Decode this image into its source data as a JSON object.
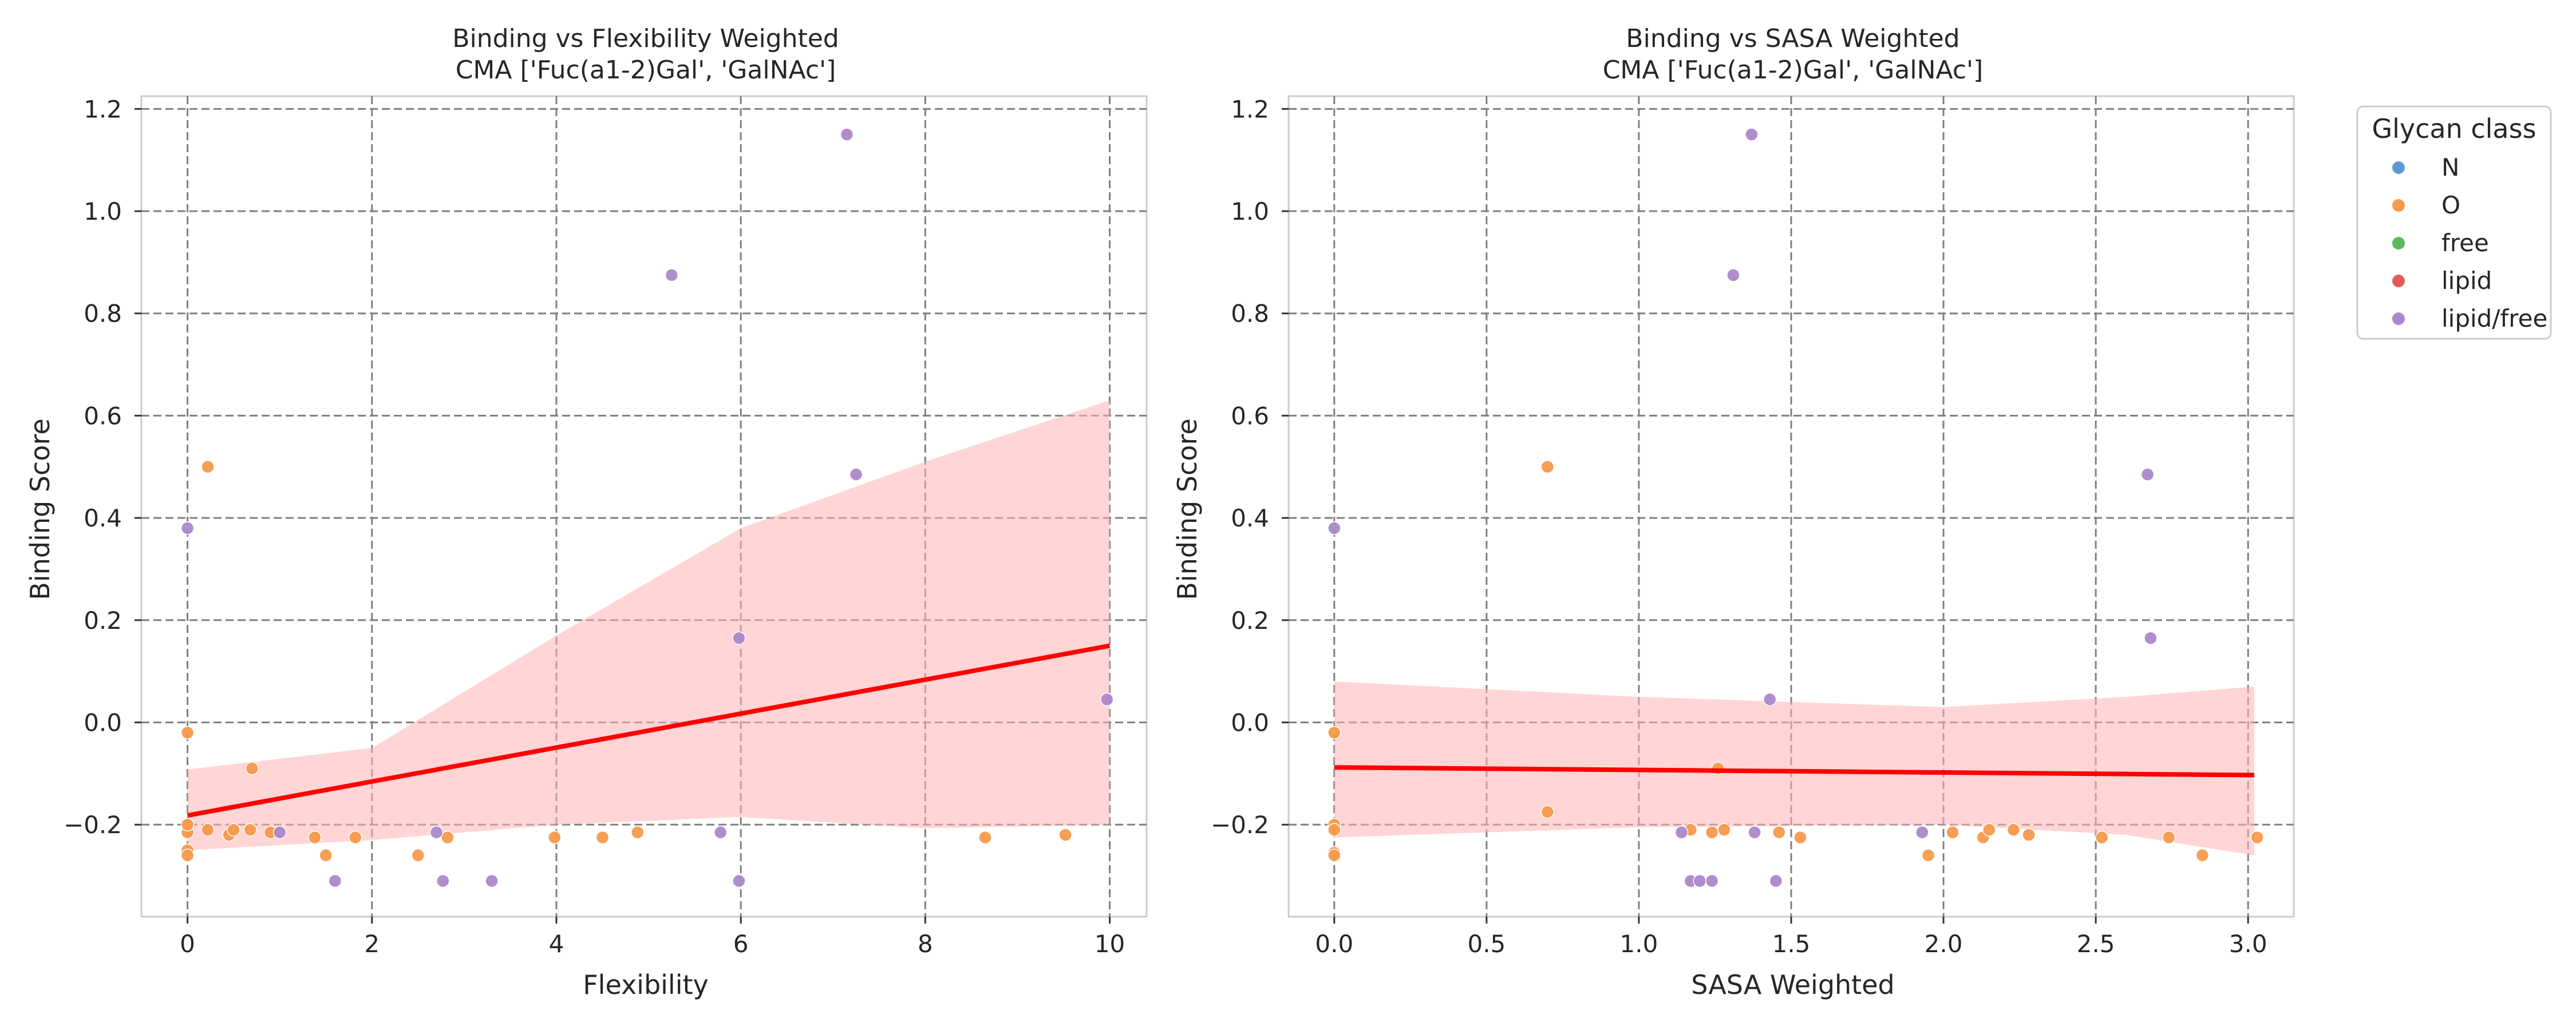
{
  "chart_data": [
    {
      "type": "scatter",
      "title_line1": "Binding vs Flexibility Weighted",
      "title_line2": "CMA ['Fuc(a1-2)Gal', 'GalNAc']",
      "xlabel": "Flexibility",
      "ylabel": "Binding Score",
      "xlim": [
        -0.5,
        10.4
      ],
      "ylim": [
        -0.38,
        1.225
      ],
      "xticks": [
        0,
        2,
        4,
        6,
        8,
        10
      ],
      "xtick_labels": [
        "0",
        "2",
        "4",
        "6",
        "8",
        "10"
      ],
      "yticks": [
        -0.2,
        0.0,
        0.2,
        0.4,
        0.6,
        0.8,
        1.0,
        1.2
      ],
      "ytick_labels": [
        "−0.2",
        "0.0",
        "0.2",
        "0.4",
        "0.6",
        "0.8",
        "1.0",
        "1.2"
      ],
      "grid": true,
      "points": [
        {
          "x": 0.0,
          "y": -0.215,
          "class": "O"
        },
        {
          "x": 0.0,
          "y": -0.2,
          "class": "O"
        },
        {
          "x": 0.0,
          "y": -0.25,
          "class": "O"
        },
        {
          "x": 0.0,
          "y": -0.26,
          "class": "O"
        },
        {
          "x": 0.0,
          "y": -0.02,
          "class": "O"
        },
        {
          "x": 0.22,
          "y": 0.5,
          "class": "O"
        },
        {
          "x": 0.22,
          "y": -0.21,
          "class": "O"
        },
        {
          "x": 0.45,
          "y": -0.22,
          "class": "O"
        },
        {
          "x": 0.5,
          "y": -0.21,
          "class": "O"
        },
        {
          "x": 0.68,
          "y": -0.21,
          "class": "O"
        },
        {
          "x": 0.7,
          "y": -0.09,
          "class": "O"
        },
        {
          "x": 0.9,
          "y": -0.215,
          "class": "O"
        },
        {
          "x": 1.38,
          "y": -0.225,
          "class": "O"
        },
        {
          "x": 1.5,
          "y": -0.26,
          "class": "O"
        },
        {
          "x": 1.82,
          "y": -0.225,
          "class": "O"
        },
        {
          "x": 2.5,
          "y": -0.26,
          "class": "O"
        },
        {
          "x": 2.82,
          "y": -0.225,
          "class": "O"
        },
        {
          "x": 3.98,
          "y": -0.225,
          "class": "O"
        },
        {
          "x": 4.5,
          "y": -0.225,
          "class": "O"
        },
        {
          "x": 4.88,
          "y": -0.215,
          "class": "O"
        },
        {
          "x": 8.65,
          "y": -0.225,
          "class": "O"
        },
        {
          "x": 9.52,
          "y": -0.22,
          "class": "O"
        },
        {
          "x": 0.0,
          "y": 0.38,
          "class": "lipid/free"
        },
        {
          "x": 1.0,
          "y": -0.215,
          "class": "lipid/free"
        },
        {
          "x": 1.6,
          "y": -0.31,
          "class": "lipid/free"
        },
        {
          "x": 2.7,
          "y": -0.215,
          "class": "lipid/free"
        },
        {
          "x": 2.77,
          "y": -0.31,
          "class": "lipid/free"
        },
        {
          "x": 3.3,
          "y": -0.31,
          "class": "lipid/free"
        },
        {
          "x": 5.25,
          "y": 0.875,
          "class": "lipid/free"
        },
        {
          "x": 5.78,
          "y": -0.215,
          "class": "lipid/free"
        },
        {
          "x": 5.98,
          "y": 0.165,
          "class": "lipid/free"
        },
        {
          "x": 5.98,
          "y": -0.31,
          "class": "lipid/free"
        },
        {
          "x": 7.15,
          "y": 1.15,
          "class": "lipid/free"
        },
        {
          "x": 7.25,
          "y": 0.485,
          "class": "lipid/free"
        },
        {
          "x": 9.97,
          "y": 0.045,
          "class": "lipid/free"
        }
      ],
      "regression": {
        "x": [
          0,
          10
        ],
        "y": [
          -0.182,
          0.15
        ],
        "ci_upper": [
          [
            0,
            -0.092
          ],
          [
            2,
            -0.05
          ],
          [
            4,
            0.17
          ],
          [
            6,
            0.38
          ],
          [
            8,
            0.51
          ],
          [
            10,
            0.63
          ]
        ],
        "ci_lower": [
          [
            10,
            -0.2
          ],
          [
            8,
            -0.207
          ],
          [
            6,
            -0.185
          ],
          [
            4,
            -0.2
          ],
          [
            2,
            -0.23
          ],
          [
            0,
            -0.25
          ]
        ]
      }
    },
    {
      "type": "scatter",
      "title_line1": "Binding vs SASA Weighted",
      "title_line2": "CMA ['Fuc(a1-2)Gal', 'GalNAc']",
      "xlabel": "SASA Weighted",
      "ylabel": "Binding Score",
      "xlim": [
        -0.15,
        3.15
      ],
      "ylim": [
        -0.38,
        1.225
      ],
      "xticks": [
        0.0,
        0.5,
        1.0,
        1.5,
        2.0,
        2.5,
        3.0
      ],
      "xtick_labels": [
        "0.0",
        "0.5",
        "1.0",
        "1.5",
        "2.0",
        "2.5",
        "3.0"
      ],
      "yticks": [
        -0.2,
        0.0,
        0.2,
        0.4,
        0.6,
        0.8,
        1.0,
        1.2
      ],
      "ytick_labels": [
        "−0.2",
        "0.0",
        "0.2",
        "0.4",
        "0.6",
        "0.8",
        "1.0",
        "1.2"
      ],
      "grid": true,
      "points": [
        {
          "x": 0.0,
          "y": -0.2,
          "class": "O"
        },
        {
          "x": 0.0,
          "y": -0.21,
          "class": "O"
        },
        {
          "x": 0.0,
          "y": -0.255,
          "class": "O"
        },
        {
          "x": 0.0,
          "y": -0.26,
          "class": "O"
        },
        {
          "x": 0.0,
          "y": -0.02,
          "class": "O"
        },
        {
          "x": 0.7,
          "y": 0.5,
          "class": "O"
        },
        {
          "x": 0.7,
          "y": -0.175,
          "class": "O"
        },
        {
          "x": 1.17,
          "y": -0.21,
          "class": "O"
        },
        {
          "x": 1.24,
          "y": -0.215,
          "class": "O"
        },
        {
          "x": 1.26,
          "y": -0.09,
          "class": "O"
        },
        {
          "x": 1.28,
          "y": -0.21,
          "class": "O"
        },
        {
          "x": 1.46,
          "y": -0.215,
          "class": "O"
        },
        {
          "x": 1.53,
          "y": -0.225,
          "class": "O"
        },
        {
          "x": 1.95,
          "y": -0.26,
          "class": "O"
        },
        {
          "x": 2.03,
          "y": -0.215,
          "class": "O"
        },
        {
          "x": 2.13,
          "y": -0.225,
          "class": "O"
        },
        {
          "x": 2.15,
          "y": -0.21,
          "class": "O"
        },
        {
          "x": 2.23,
          "y": -0.21,
          "class": "O"
        },
        {
          "x": 2.28,
          "y": -0.22,
          "class": "O"
        },
        {
          "x": 2.52,
          "y": -0.225,
          "class": "O"
        },
        {
          "x": 2.74,
          "y": -0.225,
          "class": "O"
        },
        {
          "x": 2.85,
          "y": -0.26,
          "class": "O"
        },
        {
          "x": 3.03,
          "y": -0.225,
          "class": "O"
        },
        {
          "x": 0.0,
          "y": 0.38,
          "class": "lipid/free"
        },
        {
          "x": 1.14,
          "y": -0.215,
          "class": "lipid/free"
        },
        {
          "x": 1.17,
          "y": -0.31,
          "class": "lipid/free"
        },
        {
          "x": 1.2,
          "y": -0.31,
          "class": "lipid/free"
        },
        {
          "x": 1.24,
          "y": -0.31,
          "class": "lipid/free"
        },
        {
          "x": 1.31,
          "y": 0.875,
          "class": "lipid/free"
        },
        {
          "x": 1.37,
          "y": 1.15,
          "class": "lipid/free"
        },
        {
          "x": 1.38,
          "y": -0.215,
          "class": "lipid/free"
        },
        {
          "x": 1.43,
          "y": 0.045,
          "class": "lipid/free"
        },
        {
          "x": 1.45,
          "y": -0.31,
          "class": "lipid/free"
        },
        {
          "x": 1.93,
          "y": -0.215,
          "class": "lipid/free"
        },
        {
          "x": 2.67,
          "y": 0.485,
          "class": "lipid/free"
        },
        {
          "x": 2.68,
          "y": 0.165,
          "class": "lipid/free"
        }
      ],
      "regression": {
        "x": [
          0,
          3.02
        ],
        "y": [
          -0.088,
          -0.103
        ],
        "ci_upper": [
          [
            0,
            0.08
          ],
          [
            1.0,
            0.05
          ],
          [
            2.0,
            0.03
          ],
          [
            2.6,
            0.05
          ],
          [
            3.02,
            0.07
          ]
        ],
        "ci_lower": [
          [
            3.02,
            -0.26
          ],
          [
            2.6,
            -0.22
          ],
          [
            2.0,
            -0.2
          ],
          [
            1.0,
            -0.205
          ],
          [
            0,
            -0.225
          ]
        ]
      }
    }
  ],
  "legend": {
    "title": "Glycan class",
    "placement": "outside right",
    "items": [
      {
        "label": "N",
        "color": "#5b9bd5"
      },
      {
        "label": "O",
        "color": "#f59a4c"
      },
      {
        "label": "free",
        "color": "#5cb85c"
      },
      {
        "label": "lipid",
        "color": "#e05c5c"
      },
      {
        "label": "lipid/free",
        "color": "#ac87c9"
      }
    ]
  },
  "colors": {
    "O": "#f59a4c",
    "lipid/free": "#ac87c9",
    "regression_line": "#ff0000",
    "ci_band": "#ffb3b3",
    "grid": "#7f7f7f"
  }
}
